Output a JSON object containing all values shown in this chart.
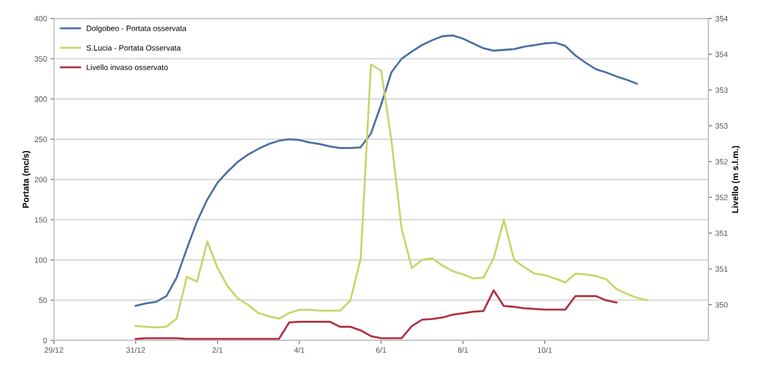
{
  "chart_data": {
    "type": "line",
    "ylabel": "Portata (mc/s)",
    "y2label": "Livello (m s.l.m.)",
    "categories": [
      "29/12",
      null,
      null,
      null,
      null,
      null,
      null,
      null,
      "31/12",
      null,
      null,
      null,
      null,
      null,
      null,
      null,
      "2/1",
      null,
      null,
      null,
      null,
      null,
      null,
      null,
      "4/1",
      null,
      null,
      null,
      null,
      null,
      null,
      null,
      "6/1",
      null,
      null,
      null,
      null,
      null,
      null,
      null,
      "8/1",
      null,
      null,
      null,
      null,
      null,
      null,
      null,
      "10/1",
      null,
      null,
      null,
      null,
      null,
      null,
      null,
      null,
      null,
      null,
      null,
      null,
      null,
      null,
      null,
      null
    ],
    "ylim": [
      0,
      400
    ],
    "yticks": [
      0,
      50,
      100,
      150,
      200,
      250,
      300,
      350,
      400
    ],
    "y2lim": [
      349.5,
      354
    ],
    "y2ticks": [
      {
        "value": 350,
        "label": "350"
      },
      {
        "value": 350.5,
        "label": "351"
      },
      {
        "value": 351,
        "label": "351"
      },
      {
        "value": 351.5,
        "label": "352"
      },
      {
        "value": 352,
        "label": "352"
      },
      {
        "value": 352.5,
        "label": "353"
      },
      {
        "value": 353,
        "label": "353"
      },
      {
        "value": 353.5,
        "label": "354"
      },
      {
        "value": 354,
        "label": "354"
      }
    ],
    "grid": "y",
    "legend": "top left",
    "marker": "none",
    "line_style": "solid",
    "series": [
      {
        "name": "Dolgobeo - Portata osservata",
        "color": "#4a6fa5",
        "values": [
          null,
          null,
          null,
          null,
          null,
          null,
          null,
          null,
          43,
          46,
          48,
          55,
          78,
          114,
          148,
          175,
          196,
          210,
          222,
          231,
          238,
          244,
          248,
          250,
          249,
          246,
          244,
          241,
          239,
          239,
          240,
          257,
          293,
          333,
          350,
          359,
          367,
          373,
          378,
          379,
          375,
          369,
          363,
          360,
          361,
          362,
          365,
          367,
          369,
          370,
          366,
          354,
          345,
          337,
          333,
          328,
          324,
          319,
          null,
          null,
          null,
          null,
          null,
          null,
          null
        ]
      },
      {
        "name": "S.Lucia - Portata Osservata",
        "color": "#c8d46a",
        "values": [
          null,
          null,
          null,
          null,
          null,
          null,
          null,
          null,
          18,
          17,
          16,
          17,
          27,
          79,
          73,
          123,
          90,
          67,
          52,
          44,
          34,
          30,
          27,
          34,
          38,
          38,
          37,
          37,
          37,
          50,
          102,
          343,
          335,
          249,
          139,
          90,
          100,
          102,
          93,
          86,
          82,
          77,
          78,
          102,
          150,
          100,
          91,
          83,
          81,
          77,
          72,
          83,
          82,
          80,
          76,
          64,
          58,
          53,
          50,
          null,
          null,
          null,
          null,
          null,
          null
        ]
      },
      {
        "name": "Livello invaso osservato",
        "color": "#b03040",
        "axis": "y2",
        "values": [
          null,
          null,
          null,
          null,
          null,
          null,
          null,
          null,
          349.52,
          349.53,
          349.53,
          349.53,
          349.53,
          349.52,
          349.52,
          349.52,
          349.52,
          349.52,
          349.52,
          349.52,
          349.52,
          349.52,
          349.52,
          349.75,
          349.76,
          349.76,
          349.76,
          349.76,
          349.69,
          349.69,
          349.64,
          349.56,
          349.53,
          349.53,
          349.53,
          349.7,
          349.79,
          349.8,
          349.82,
          349.86,
          349.88,
          349.9,
          349.91,
          350.2,
          349.98,
          349.97,
          349.95,
          349.94,
          349.93,
          349.93,
          349.93,
          350.12,
          350.12,
          350.12,
          350.06,
          350.03,
          null,
          null,
          null,
          null,
          null,
          null,
          null,
          null,
          null
        ]
      }
    ]
  }
}
